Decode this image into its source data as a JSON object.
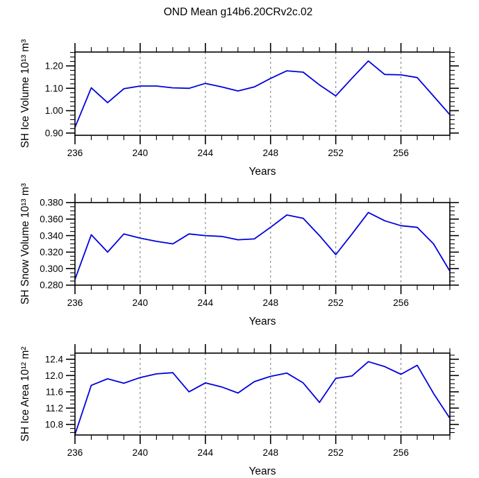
{
  "title": "OND Mean g14b6.20CRv2c.02",
  "colors": {
    "line": "#0000dd",
    "grid": "#8a8a8a",
    "axis": "#000000",
    "background": "#ffffff"
  },
  "years": [
    236,
    237,
    238,
    239,
    240,
    241,
    242,
    243,
    244,
    245,
    246,
    247,
    248,
    249,
    250,
    251,
    252,
    253,
    254,
    255,
    256,
    257,
    258,
    259
  ],
  "chart_data": [
    {
      "type": "line",
      "name": "sh-ice-volume",
      "title": "OND Mean g14b6.20CRv2c.02",
      "ylabel": "SH Ice Volume 10¹³ m³",
      "xlabel": "Years",
      "x": [
        236,
        237,
        238,
        239,
        240,
        241,
        242,
        243,
        244,
        245,
        246,
        247,
        248,
        249,
        250,
        251,
        252,
        253,
        254,
        255,
        256,
        257,
        258,
        259
      ],
      "values": [
        0.925,
        1.102,
        1.036,
        1.098,
        1.11,
        1.11,
        1.102,
        1.1,
        1.122,
        1.106,
        1.088,
        1.106,
        1.144,
        1.178,
        1.172,
        1.115,
        1.066,
        1.145,
        1.222,
        1.162,
        1.16,
        1.148,
        1.065,
        0.982
      ],
      "xlim": [
        236,
        259
      ],
      "ylim": [
        0.89,
        1.262
      ],
      "x_major_ticks": [
        236,
        240,
        244,
        248,
        252,
        256
      ],
      "x_minor_step": 1,
      "grid_x": [
        240,
        244,
        248,
        252,
        256
      ],
      "yticks": [
        {
          "v": 0.9,
          "label": "0.90"
        },
        {
          "v": 1.0,
          "label": "1.00"
        },
        {
          "v": 1.1,
          "label": "1.10"
        },
        {
          "v": 1.2,
          "label": "1.20"
        }
      ],
      "y_minor_step": 0.02,
      "grid": "vertical-dashed-only",
      "legend": "none"
    },
    {
      "type": "line",
      "name": "sh-snow-volume",
      "title": "",
      "ylabel": "SH Snow Volume 10¹³ m³",
      "xlabel": "Years",
      "x": [
        236,
        237,
        238,
        239,
        240,
        241,
        242,
        243,
        244,
        245,
        246,
        247,
        248,
        249,
        250,
        251,
        252,
        253,
        254,
        255,
        256,
        257,
        258,
        259
      ],
      "values": [
        0.287,
        0.341,
        0.32,
        0.342,
        0.337,
        0.333,
        0.33,
        0.342,
        0.34,
        0.339,
        0.335,
        0.336,
        0.35,
        0.365,
        0.361,
        0.34,
        0.317,
        0.342,
        0.368,
        0.358,
        0.352,
        0.35,
        0.33,
        0.297
      ],
      "xlim": [
        236,
        259
      ],
      "ylim": [
        0.28,
        0.38
      ],
      "x_major_ticks": [
        236,
        240,
        244,
        248,
        252,
        256
      ],
      "x_minor_step": 1,
      "grid_x": [
        240,
        244,
        248,
        252,
        256
      ],
      "yticks": [
        {
          "v": 0.28,
          "label": "0.280"
        },
        {
          "v": 0.3,
          "label": "0.300"
        },
        {
          "v": 0.32,
          "label": "0.320"
        },
        {
          "v": 0.34,
          "label": "0.340"
        },
        {
          "v": 0.36,
          "label": "0.360"
        },
        {
          "v": 0.38,
          "label": "0.380"
        }
      ],
      "y_minor_step": 0.005,
      "grid": "vertical-dashed-only",
      "legend": "none"
    },
    {
      "type": "line",
      "name": "sh-ice-area",
      "title": "",
      "ylabel": "SH Ice Area 10¹² m²",
      "xlabel": "Years",
      "x": [
        236,
        237,
        238,
        239,
        240,
        241,
        242,
        243,
        244,
        245,
        246,
        247,
        248,
        249,
        250,
        251,
        252,
        253,
        254,
        255,
        256,
        257,
        258,
        259
      ],
      "values": [
        10.55,
        11.76,
        11.92,
        11.81,
        11.95,
        12.04,
        12.07,
        11.6,
        11.82,
        11.72,
        11.57,
        11.85,
        11.98,
        12.06,
        11.82,
        11.34,
        11.93,
        11.99,
        12.34,
        12.22,
        12.03,
        12.25,
        11.56,
        10.95
      ],
      "xlim": [
        236,
        259
      ],
      "ylim": [
        10.54,
        12.55
      ],
      "x_major_ticks": [
        236,
        240,
        244,
        248,
        252,
        256
      ],
      "x_minor_step": 1,
      "grid_x": [
        240,
        244,
        248,
        252,
        256
      ],
      "yticks": [
        {
          "v": 10.8,
          "label": "10.8"
        },
        {
          "v": 11.2,
          "label": "11.2"
        },
        {
          "v": 11.6,
          "label": "11.6"
        },
        {
          "v": 12.0,
          "label": "12.0"
        },
        {
          "v": 12.4,
          "label": "12.4"
        }
      ],
      "y_minor_step": 0.1,
      "grid": "vertical-dashed-only",
      "legend": "none"
    }
  ]
}
